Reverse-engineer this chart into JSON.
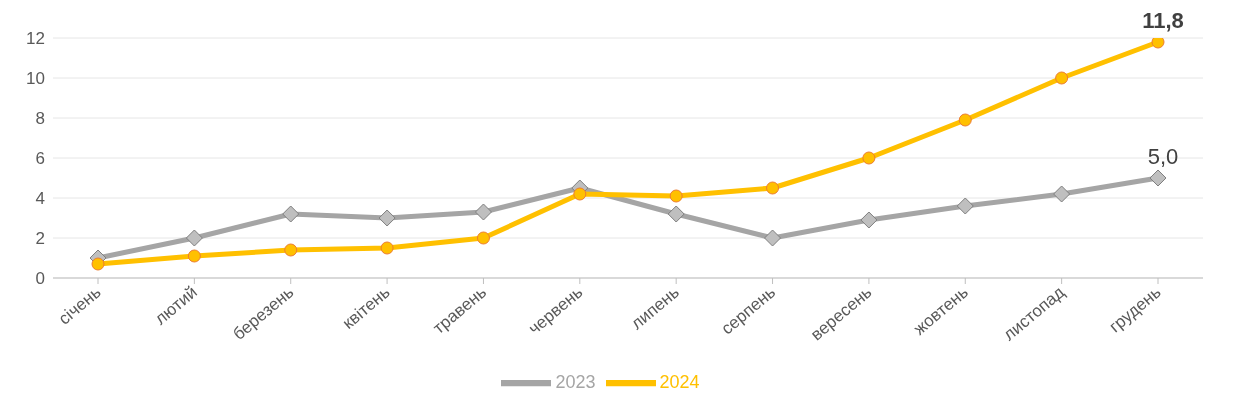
{
  "chart_data": {
    "type": "line",
    "categories": [
      "січень",
      "лютий",
      "березень",
      "квітень",
      "травень",
      "червень",
      "липень",
      "серпень",
      "вересень",
      "жовтень",
      "листопад",
      "грудень"
    ],
    "series": [
      {
        "name": "2023",
        "color": "#a5a5a5",
        "marker": "diamond",
        "values": [
          1.0,
          2.0,
          3.2,
          3.0,
          3.3,
          4.5,
          3.2,
          2.0,
          2.9,
          3.6,
          4.2,
          5.0
        ],
        "value_labels": [
          null,
          null,
          null,
          null,
          null,
          null,
          null,
          null,
          null,
          null,
          null,
          "5,0"
        ]
      },
      {
        "name": "2024",
        "color": "#ffc000",
        "marker": "circle",
        "values": [
          0.7,
          1.1,
          1.4,
          1.5,
          2.0,
          4.2,
          4.1,
          4.5,
          6.0,
          7.9,
          10.0,
          11.8
        ],
        "value_labels": [
          null,
          null,
          null,
          null,
          null,
          null,
          null,
          null,
          null,
          null,
          null,
          "11,8"
        ]
      }
    ],
    "ylim": [
      0,
      12
    ],
    "yticks": [
      0,
      2,
      4,
      6,
      8,
      10,
      12
    ],
    "grid": "y",
    "legend": "bottom",
    "line_style": "solid"
  }
}
